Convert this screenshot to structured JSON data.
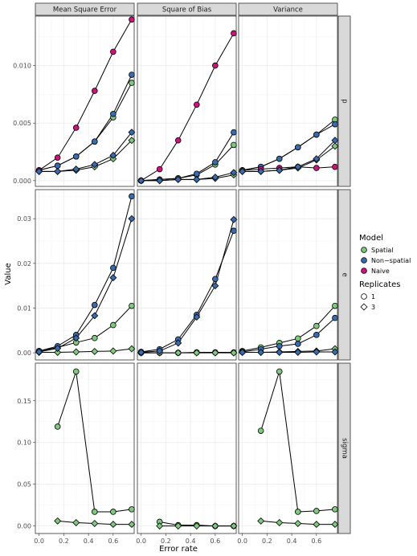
{
  "chart_data": {
    "type": "line",
    "facet_cols": [
      "Mean Square Error",
      "Square of Bias",
      "Variance"
    ],
    "facet_rows": [
      "p",
      "e",
      "sigma"
    ],
    "xlabel": "Error rate",
    "ylabel": "Value",
    "xlim": [
      -0.03,
      0.77
    ],
    "x_ticks": [
      "0.0",
      "0.2",
      "0.4",
      "0.6"
    ],
    "x_tick_values": [
      0.0,
      0.2,
      0.4,
      0.6
    ],
    "grid": true,
    "legend_placement": "right",
    "legend": {
      "model": {
        "title": "Model",
        "items": [
          {
            "label": "Spatial",
            "color": "#7fc97f"
          },
          {
            "label": "Non−spatial",
            "color": "#386cb0"
          },
          {
            "label": "Naive",
            "color": "#d0117c"
          }
        ]
      },
      "replicates": {
        "title": "Replicates",
        "items": [
          {
            "label": "1",
            "shape": "circle"
          },
          {
            "label": "3",
            "shape": "diamond"
          }
        ]
      }
    },
    "rows": {
      "p": {
        "ylim": [
          -0.0005,
          0.0143
        ],
        "y_ticks": [
          "0.000",
          "0.005",
          "0.010"
        ],
        "y_tick_values": [
          0.0,
          0.005,
          0.01
        ]
      },
      "e": {
        "ylim": [
          -0.0016,
          0.0365
        ],
        "y_ticks": [
          "0.00",
          "0.01",
          "0.02",
          "0.03"
        ],
        "y_tick_values": [
          0.0,
          0.01,
          0.02,
          0.03
        ]
      },
      "sigma": {
        "ylim": [
          -0.009,
          0.195
        ],
        "y_ticks": [
          "0.00",
          "0.05",
          "0.10",
          "0.15"
        ],
        "y_tick_values": [
          0.0,
          0.05,
          0.1,
          0.15
        ]
      }
    },
    "series": [
      {
        "model": "Spatial",
        "replicates": "1",
        "row": "p",
        "col": "Mean Square Error",
        "x": [
          0,
          0.15,
          0.3,
          0.45,
          0.6,
          0.75
        ],
        "y": [
          0.0009,
          0.0013,
          0.0021,
          0.0034,
          0.0055,
          0.0085
        ]
      },
      {
        "model": "Non−spatial",
        "replicates": "1",
        "row": "p",
        "col": "Mean Square Error",
        "x": [
          0,
          0.15,
          0.3,
          0.45,
          0.6,
          0.75
        ],
        "y": [
          0.0009,
          0.0013,
          0.0021,
          0.0034,
          0.0058,
          0.0092
        ]
      },
      {
        "model": "Naive",
        "replicates": "1",
        "row": "p",
        "col": "Mean Square Error",
        "x": [
          0,
          0.15,
          0.3,
          0.45,
          0.6,
          0.75
        ],
        "y": [
          0.0009,
          0.002,
          0.0046,
          0.0078,
          0.0112,
          0.014
        ]
      },
      {
        "model": "Spatial",
        "replicates": "3",
        "row": "p",
        "col": "Mean Square Error",
        "x": [
          0,
          0.15,
          0.3,
          0.45,
          0.6,
          0.75
        ],
        "y": [
          0.0008,
          0.0008,
          0.0009,
          0.0012,
          0.0019,
          0.0035
        ]
      },
      {
        "model": "Non−spatial",
        "replicates": "3",
        "row": "p",
        "col": "Mean Square Error",
        "x": [
          0,
          0.15,
          0.3,
          0.45,
          0.6,
          0.75
        ],
        "y": [
          0.0008,
          0.0008,
          0.001,
          0.0014,
          0.0022,
          0.0042
        ]
      },
      {
        "model": "Spatial",
        "replicates": "1",
        "row": "p",
        "col": "Square of Bias",
        "x": [
          0,
          0.15,
          0.3,
          0.45,
          0.6,
          0.75
        ],
        "y": [
          0.0,
          0.0001,
          0.0002,
          0.0005,
          0.0014,
          0.0031
        ]
      },
      {
        "model": "Non−spatial",
        "replicates": "1",
        "row": "p",
        "col": "Square of Bias",
        "x": [
          0,
          0.15,
          0.3,
          0.45,
          0.6,
          0.75
        ],
        "y": [
          0.0,
          0.0001,
          0.0002,
          0.0006,
          0.0016,
          0.0042
        ]
      },
      {
        "model": "Naive",
        "replicates": "1",
        "row": "p",
        "col": "Square of Bias",
        "x": [
          0,
          0.15,
          0.3,
          0.45,
          0.6,
          0.75
        ],
        "y": [
          0.0,
          0.001,
          0.0035,
          0.0066,
          0.01,
          0.0128
        ]
      },
      {
        "model": "Spatial",
        "replicates": "3",
        "row": "p",
        "col": "Square of Bias",
        "x": [
          0,
          0.15,
          0.3,
          0.45,
          0.6,
          0.75
        ],
        "y": [
          0.0,
          0.0,
          0.0001,
          0.0001,
          0.0002,
          0.0005
        ]
      },
      {
        "model": "Non−spatial",
        "replicates": "3",
        "row": "p",
        "col": "Square of Bias",
        "x": [
          0,
          0.15,
          0.3,
          0.45,
          0.6,
          0.75
        ],
        "y": [
          0.0,
          0.0,
          0.0001,
          0.0001,
          0.0003,
          0.0007
        ]
      },
      {
        "model": "Spatial",
        "replicates": "1",
        "row": "p",
        "col": "Variance",
        "x": [
          0,
          0.15,
          0.3,
          0.45,
          0.6,
          0.75
        ],
        "y": [
          0.0009,
          0.0012,
          0.0019,
          0.0029,
          0.004,
          0.0053
        ]
      },
      {
        "model": "Non−spatial",
        "replicates": "1",
        "row": "p",
        "col": "Variance",
        "x": [
          0,
          0.15,
          0.3,
          0.45,
          0.6,
          0.75
        ],
        "y": [
          0.0009,
          0.0012,
          0.0019,
          0.0029,
          0.004,
          0.0049
        ]
      },
      {
        "model": "Naive",
        "replicates": "1",
        "row": "p",
        "col": "Variance",
        "x": [
          0,
          0.15,
          0.3,
          0.45,
          0.6,
          0.75
        ],
        "y": [
          0.0009,
          0.001,
          0.0011,
          0.0012,
          0.0011,
          0.0012
        ]
      },
      {
        "model": "Spatial",
        "replicates": "3",
        "row": "p",
        "col": "Variance",
        "x": [
          0,
          0.15,
          0.3,
          0.45,
          0.6,
          0.75
        ],
        "y": [
          0.0008,
          0.0008,
          0.0009,
          0.0011,
          0.0018,
          0.003
        ]
      },
      {
        "model": "Non−spatial",
        "replicates": "3",
        "row": "p",
        "col": "Variance",
        "x": [
          0,
          0.15,
          0.3,
          0.45,
          0.6,
          0.75
        ],
        "y": [
          0.0008,
          0.0008,
          0.0009,
          0.0012,
          0.0019,
          0.0035
        ]
      },
      {
        "model": "Spatial",
        "replicates": "1",
        "row": "e",
        "col": "Mean Square Error",
        "x": [
          0,
          0.15,
          0.3,
          0.45,
          0.6,
          0.75
        ],
        "y": [
          0.0004,
          0.0012,
          0.0023,
          0.0033,
          0.0062,
          0.0105
        ]
      },
      {
        "model": "Non−spatial",
        "replicates": "1",
        "row": "e",
        "col": "Mean Square Error",
        "x": [
          0,
          0.15,
          0.3,
          0.45,
          0.6,
          0.75
        ],
        "y": [
          0.0004,
          0.0015,
          0.004,
          0.0107,
          0.019,
          0.035
        ]
      },
      {
        "model": "Spatial",
        "replicates": "3",
        "row": "e",
        "col": "Mean Square Error",
        "x": [
          0,
          0.15,
          0.3,
          0.45,
          0.6,
          0.75
        ],
        "y": [
          0.0001,
          0.0001,
          0.0002,
          0.0003,
          0.0004,
          0.0009
        ]
      },
      {
        "model": "Non−spatial",
        "replicates": "3",
        "row": "e",
        "col": "Mean Square Error",
        "x": [
          0,
          0.15,
          0.3,
          0.45,
          0.6,
          0.75
        ],
        "y": [
          0.0002,
          0.001,
          0.0033,
          0.0083,
          0.0168,
          0.03
        ]
      },
      {
        "model": "Spatial",
        "replicates": "1",
        "row": "e",
        "col": "Square of Bias",
        "x": [
          0,
          0.15,
          0.3,
          0.45,
          0.6,
          0.75
        ],
        "y": [
          0.0,
          0.0,
          0.0,
          0.0001,
          0.0001,
          0.0001
        ]
      },
      {
        "model": "Non−spatial",
        "replicates": "1",
        "row": "e",
        "col": "Square of Bias",
        "x": [
          0,
          0.15,
          0.3,
          0.45,
          0.6,
          0.75
        ],
        "y": [
          0.0002,
          0.0008,
          0.003,
          0.0085,
          0.0165,
          0.0273
        ]
      },
      {
        "model": "Spatial",
        "replicates": "3",
        "row": "e",
        "col": "Square of Bias",
        "x": [
          0,
          0.15,
          0.3,
          0.45,
          0.6,
          0.75
        ],
        "y": [
          0.0,
          0.0,
          0.0,
          0.0,
          0.0,
          0.0
        ]
      },
      {
        "model": "Non−spatial",
        "replicates": "3",
        "row": "e",
        "col": "Square of Bias",
        "x": [
          0,
          0.15,
          0.3,
          0.45,
          0.6,
          0.75
        ],
        "y": [
          0.0001,
          0.0004,
          0.0022,
          0.008,
          0.015,
          0.0298
        ]
      },
      {
        "model": "Spatial",
        "replicates": "1",
        "row": "e",
        "col": "Variance",
        "x": [
          0,
          0.15,
          0.3,
          0.45,
          0.6,
          0.75
        ],
        "y": [
          0.0004,
          0.0012,
          0.0022,
          0.0032,
          0.006,
          0.0105
        ]
      },
      {
        "model": "Non−spatial",
        "replicates": "1",
        "row": "e",
        "col": "Variance",
        "x": [
          0,
          0.15,
          0.3,
          0.45,
          0.6,
          0.75
        ],
        "y": [
          0.0002,
          0.0008,
          0.0015,
          0.002,
          0.004,
          0.0078
        ]
      },
      {
        "model": "Spatial",
        "replicates": "3",
        "row": "e",
        "col": "Variance",
        "x": [
          0,
          0.15,
          0.3,
          0.45,
          0.6,
          0.75
        ],
        "y": [
          0.0001,
          0.0001,
          0.0002,
          0.0003,
          0.0004,
          0.0009
        ]
      },
      {
        "model": "Non−spatial",
        "replicates": "3",
        "row": "e",
        "col": "Variance",
        "x": [
          0,
          0.15,
          0.3,
          0.45,
          0.6,
          0.75
        ],
        "y": [
          0.0001,
          0.0001,
          0.0001,
          0.0001,
          0.0002,
          0.0002
        ]
      },
      {
        "model": "Spatial",
        "replicates": "1",
        "row": "sigma",
        "col": "Mean Square Error",
        "x": [
          0.15,
          0.3,
          0.45,
          0.6,
          0.75
        ],
        "y": [
          0.119,
          0.185,
          0.017,
          0.017,
          0.02
        ]
      },
      {
        "model": "Spatial",
        "replicates": "3",
        "row": "sigma",
        "col": "Mean Square Error",
        "x": [
          0.15,
          0.3,
          0.45,
          0.6,
          0.75
        ],
        "y": [
          0.006,
          0.004,
          0.003,
          0.002,
          0.002
        ]
      },
      {
        "model": "Spatial",
        "replicates": "1",
        "row": "sigma",
        "col": "Square of Bias",
        "x": [
          0.15,
          0.3,
          0.45,
          0.6,
          0.75
        ],
        "y": [
          0.005,
          0.001,
          0.001,
          0.0,
          0.0
        ]
      },
      {
        "model": "Spatial",
        "replicates": "3",
        "row": "sigma",
        "col": "Square of Bias",
        "x": [
          0.15,
          0.3,
          0.45,
          0.6,
          0.75
        ],
        "y": [
          0.0,
          0.0,
          0.0,
          0.0,
          0.0
        ]
      },
      {
        "model": "Spatial",
        "replicates": "1",
        "row": "sigma",
        "col": "Variance",
        "x": [
          0.15,
          0.3,
          0.45,
          0.6,
          0.75
        ],
        "y": [
          0.114,
          0.185,
          0.017,
          0.018,
          0.02
        ]
      },
      {
        "model": "Spatial",
        "replicates": "3",
        "row": "sigma",
        "col": "Variance",
        "x": [
          0.15,
          0.3,
          0.45,
          0.6,
          0.75
        ],
        "y": [
          0.006,
          0.004,
          0.003,
          0.002,
          0.002
        ]
      }
    ]
  }
}
